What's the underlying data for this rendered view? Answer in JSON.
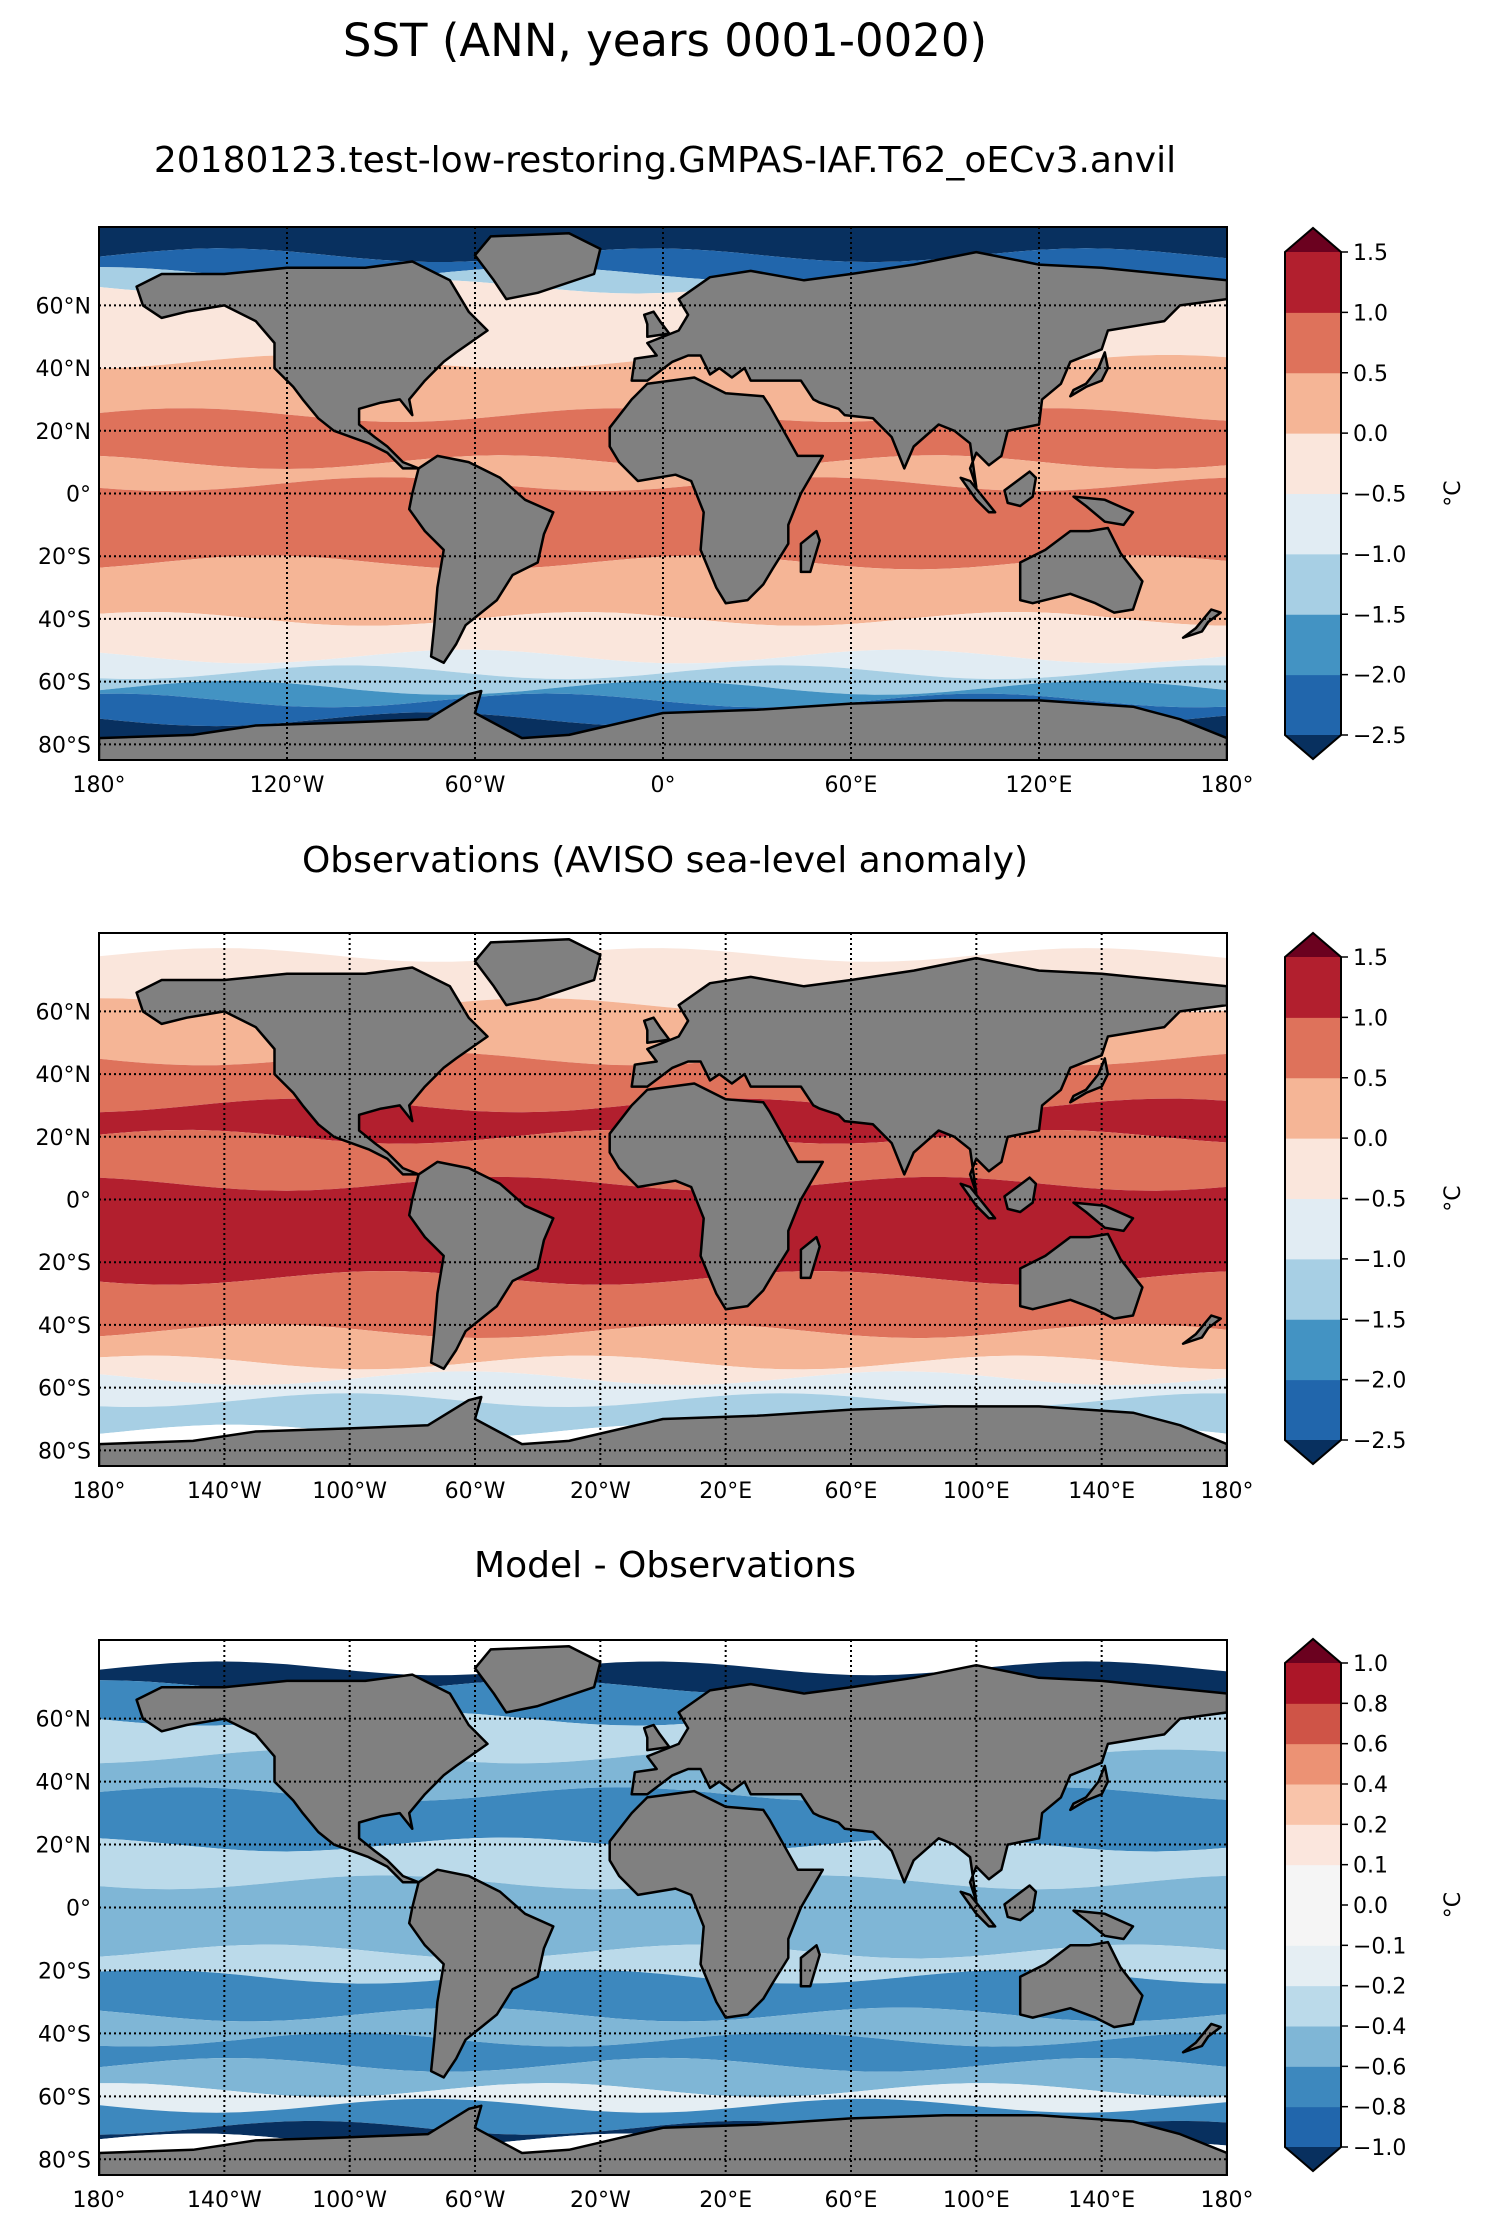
{
  "figure": {
    "title": "SST (ANN, years 0001-0020)"
  },
  "chart_data": [
    {
      "type": "heatmap",
      "subtype": "global-map-filled-contour",
      "title": "20180123.test-low-restoring.GMPAS-IAF.T62_oECv3.anvil",
      "xlabel": "",
      "ylabel": "",
      "xlim": [
        -180,
        180
      ],
      "ylim": [
        -85,
        85
      ],
      "xticks": [
        -180,
        -120,
        -60,
        0,
        60,
        120,
        180
      ],
      "xtick_labels": [
        "180°",
        "120°W",
        "60°W",
        "0°",
        "60°E",
        "120°E",
        "180°"
      ],
      "yticks": [
        60,
        40,
        20,
        0,
        -20,
        -40,
        -60,
        -80
      ],
      "ytick_labels": [
        "60°N",
        "40°N",
        "20°N",
        "0°",
        "20°S",
        "40°S",
        "60°S",
        "80°S"
      ],
      "grid": true,
      "land_color": "#808080",
      "colorbar": {
        "label": "°C",
        "levels": [
          -2.5,
          -2.0,
          -1.5,
          -1.0,
          -0.5,
          0.0,
          0.5,
          1.0,
          1.5
        ],
        "tick_labels": [
          "−2.5",
          "−2.0",
          "−1.5",
          "−1.0",
          "−0.5",
          "0.0",
          "0.5",
          "1.0",
          "1.5"
        ],
        "colors": [
          "#2166ac",
          "#4393c3",
          "#a7cfe4",
          "#e1ecf3",
          "#fae6dc",
          "#f5b596",
          "#de725b",
          "#b21f2e"
        ],
        "under_color": "#08305f",
        "over_color": "#6b011f",
        "extend": "both"
      },
      "bands": [
        {
          "lat_from": 85,
          "lat_to": 76,
          "level_index": -1
        },
        {
          "lat_from": 76,
          "lat_to": 70,
          "level_index": 0
        },
        {
          "lat_from": 70,
          "lat_to": 66,
          "level_index": 2
        },
        {
          "lat_from": 66,
          "lat_to": 42,
          "level_index": 4
        },
        {
          "lat_from": 42,
          "lat_to": 25,
          "level_index": 5
        },
        {
          "lat_from": 25,
          "lat_to": 10,
          "level_index": 6
        },
        {
          "lat_from": 10,
          "lat_to": 3,
          "level_index": 5
        },
        {
          "lat_from": 3,
          "lat_to": -22,
          "level_index": 6
        },
        {
          "lat_from": -22,
          "lat_to": -40,
          "level_index": 5
        },
        {
          "lat_from": -40,
          "lat_to": -52,
          "level_index": 4
        },
        {
          "lat_from": -52,
          "lat_to": -57,
          "level_index": 3
        },
        {
          "lat_from": -57,
          "lat_to": -62,
          "level_index": 2
        },
        {
          "lat_from": -62,
          "lat_to": -66,
          "level_index": 1
        },
        {
          "lat_from": -66,
          "lat_to": -72,
          "level_index": 0
        },
        {
          "lat_from": -72,
          "lat_to": -85,
          "level_index": -1
        }
      ]
    },
    {
      "type": "heatmap",
      "subtype": "global-map-filled-contour",
      "title": "Observations (AVISO sea-level anomaly)",
      "xlabel": "",
      "ylabel": "",
      "xlim": [
        -180,
        180
      ],
      "ylim": [
        -85,
        85
      ],
      "xticks": [
        -180,
        -140,
        -100,
        -60,
        -20,
        20,
        60,
        100,
        140,
        180
      ],
      "xtick_labels": [
        "180°",
        "140°W",
        "100°W",
        "60°W",
        "20°W",
        "20°E",
        "60°E",
        "100°E",
        "140°E",
        "180°"
      ],
      "yticks": [
        60,
        40,
        20,
        0,
        -20,
        -40,
        -60,
        -80
      ],
      "ytick_labels": [
        "60°N",
        "40°N",
        "20°N",
        "0°",
        "20°S",
        "40°S",
        "60°S",
        "80°S"
      ],
      "grid": true,
      "land_color": "#808080",
      "colorbar": {
        "label": "°C",
        "levels": [
          -2.5,
          -2.0,
          -1.5,
          -1.0,
          -0.5,
          0.0,
          0.5,
          1.0,
          1.5
        ],
        "tick_labels": [
          "−2.5",
          "−2.0",
          "−1.5",
          "−1.0",
          "−0.5",
          "0.0",
          "0.5",
          "1.0",
          "1.5"
        ],
        "colors": [
          "#2166ac",
          "#4393c3",
          "#a7cfe4",
          "#e1ecf3",
          "#fae6dc",
          "#f5b596",
          "#de725b",
          "#b21f2e"
        ],
        "under_color": "#08305f",
        "over_color": "#6b011f",
        "extend": "both"
      },
      "bands": [
        {
          "lat_from": 85,
          "lat_to": 78,
          "level_index": null
        },
        {
          "lat_from": 78,
          "lat_to": 62,
          "level_index": 4
        },
        {
          "lat_from": 62,
          "lat_to": 45,
          "level_index": 5
        },
        {
          "lat_from": 45,
          "lat_to": 30,
          "level_index": 6
        },
        {
          "lat_from": 30,
          "lat_to": 20,
          "level_index": 7
        },
        {
          "lat_from": 20,
          "lat_to": 5,
          "level_index": 6
        },
        {
          "lat_from": 5,
          "lat_to": -25,
          "level_index": 7
        },
        {
          "lat_from": -25,
          "lat_to": -42,
          "level_index": 6
        },
        {
          "lat_from": -42,
          "lat_to": -52,
          "level_index": 5
        },
        {
          "lat_from": -52,
          "lat_to": -57,
          "level_index": 4
        },
        {
          "lat_from": -57,
          "lat_to": -64,
          "level_index": 3
        },
        {
          "lat_from": -64,
          "lat_to": -74,
          "level_index": 2
        },
        {
          "lat_from": -74,
          "lat_to": -85,
          "level_index": null
        }
      ]
    },
    {
      "type": "heatmap",
      "subtype": "global-map-filled-contour",
      "title": "Model - Observations",
      "xlabel": "",
      "ylabel": "",
      "xlim": [
        -180,
        180
      ],
      "ylim": [
        -85,
        85
      ],
      "xticks": [
        -180,
        -140,
        -100,
        -60,
        -20,
        20,
        60,
        100,
        140,
        180
      ],
      "xtick_labels": [
        "180°",
        "140°W",
        "100°W",
        "60°W",
        "20°W",
        "20°E",
        "60°E",
        "100°E",
        "140°E",
        "180°"
      ],
      "yticks": [
        60,
        40,
        20,
        0,
        -20,
        -40,
        -60,
        -80
      ],
      "ytick_labels": [
        "60°N",
        "40°N",
        "20°N",
        "0°",
        "20°S",
        "40°S",
        "60°S",
        "80°S"
      ],
      "grid": true,
      "land_color": "#808080",
      "colorbar": {
        "label": "°C",
        "levels": [
          -1.0,
          -0.8,
          -0.6,
          -0.4,
          -0.2,
          -0.1,
          0.0,
          0.1,
          0.2,
          0.4,
          0.6,
          0.8,
          1.0
        ],
        "tick_labels": [
          "−1.0",
          "−0.8",
          "−0.6",
          "−0.4",
          "−0.2",
          "−0.1",
          "0.0",
          "0.1",
          "0.2",
          "0.4",
          "0.6",
          "0.8",
          "1.0"
        ],
        "colors": [
          "#2166ac",
          "#3d88be",
          "#7fb6d6",
          "#bbdaea",
          "#e5eef3",
          "#f5f5f5",
          "#f5f5f5",
          "#fbe6dd",
          "#f9c4aa",
          "#ec9274",
          "#cf5447",
          "#ac1628"
        ],
        "under_color": "#08305f",
        "over_color": "#6b011f",
        "extend": "both"
      },
      "bands": [
        {
          "lat_from": 85,
          "lat_to": 76,
          "level_index": null
        },
        {
          "lat_from": 76,
          "lat_to": 70,
          "level_index": -1
        },
        {
          "lat_from": 70,
          "lat_to": 60,
          "level_index": 1
        },
        {
          "lat_from": 60,
          "lat_to": 48,
          "level_index": 3
        },
        {
          "lat_from": 48,
          "lat_to": 36,
          "level_index": 2
        },
        {
          "lat_from": 36,
          "lat_to": 20,
          "level_index": 1
        },
        {
          "lat_from": 20,
          "lat_to": 8,
          "level_index": 3
        },
        {
          "lat_from": 8,
          "lat_to": -14,
          "level_index": 2
        },
        {
          "lat_from": -14,
          "lat_to": -22,
          "level_index": 3
        },
        {
          "lat_from": -22,
          "lat_to": -34,
          "level_index": 1
        },
        {
          "lat_from": -34,
          "lat_to": -42,
          "level_index": 2
        },
        {
          "lat_from": -42,
          "lat_to": -50,
          "level_index": 1
        },
        {
          "lat_from": -50,
          "lat_to": -58,
          "level_index": 2
        },
        {
          "lat_from": -58,
          "lat_to": -63,
          "level_index": 4
        },
        {
          "lat_from": -63,
          "lat_to": -70,
          "level_index": 1
        },
        {
          "lat_from": -70,
          "lat_to": -74,
          "level_index": -1
        },
        {
          "lat_from": -74,
          "lat_to": -85,
          "level_index": null
        }
      ]
    }
  ]
}
